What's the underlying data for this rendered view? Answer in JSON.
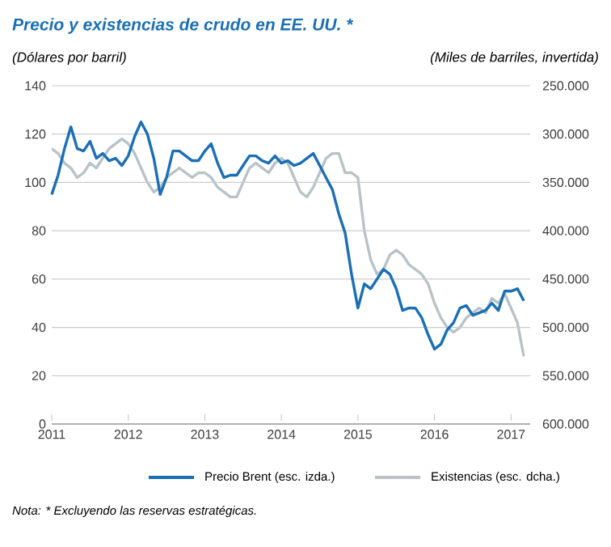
{
  "chart_data": {
    "type": "line",
    "title": "Precio y existencias de crudo en EE. UU. *",
    "ylabel": "(Dólares por barril)",
    "y2label": "(Miles de barriles, invertida)",
    "x": [
      "2011-01",
      "2011-02",
      "2011-03",
      "2011-04",
      "2011-05",
      "2011-06",
      "2011-07",
      "2011-08",
      "2011-09",
      "2011-10",
      "2011-11",
      "2011-12",
      "2012-01",
      "2012-02",
      "2012-03",
      "2012-04",
      "2012-05",
      "2012-06",
      "2012-07",
      "2012-08",
      "2012-09",
      "2012-10",
      "2012-11",
      "2012-12",
      "2013-01",
      "2013-02",
      "2013-03",
      "2013-04",
      "2013-05",
      "2013-06",
      "2013-07",
      "2013-08",
      "2013-09",
      "2013-10",
      "2013-11",
      "2013-12",
      "2014-01",
      "2014-02",
      "2014-03",
      "2014-04",
      "2014-05",
      "2014-06",
      "2014-07",
      "2014-08",
      "2014-09",
      "2014-10",
      "2014-11",
      "2014-12",
      "2015-01",
      "2015-02",
      "2015-03",
      "2015-04",
      "2015-05",
      "2015-06",
      "2015-07",
      "2015-08",
      "2015-09",
      "2015-10",
      "2015-11",
      "2015-12",
      "2016-01",
      "2016-02",
      "2016-03",
      "2016-04",
      "2016-05",
      "2016-06",
      "2016-07",
      "2016-08",
      "2016-09",
      "2016-10",
      "2016-11",
      "2016-12",
      "2017-01",
      "2017-02",
      "2017-03"
    ],
    "series": [
      {
        "name": "Precio Brent (esc. izda.)",
        "color": "#1a6fb5",
        "values": [
          95,
          103,
          114,
          123,
          114,
          113,
          117,
          110,
          112,
          109,
          110,
          107,
          111,
          119,
          125,
          120,
          110,
          95,
          102,
          113,
          113,
          111,
          109,
          109,
          113,
          116,
          108,
          102,
          103,
          103,
          107,
          111,
          111,
          109,
          108,
          111,
          108,
          109,
          107,
          108,
          110,
          112,
          107,
          102,
          97,
          87,
          79,
          62,
          48,
          58,
          56,
          60,
          64,
          62,
          56,
          47,
          48,
          48,
          44,
          37,
          31,
          33,
          39,
          42,
          48,
          49,
          45,
          46,
          47,
          50,
          47,
          55,
          55,
          56,
          51
        ]
      },
      {
        "name": "Existencias (esc. dcha.)",
        "color": "#b8c3c8",
        "axis": "y2",
        "values": [
          315000,
          320000,
          330000,
          335000,
          345000,
          340000,
          330000,
          335000,
          325000,
          315000,
          310000,
          305000,
          310000,
          320000,
          335000,
          350000,
          360000,
          355000,
          345000,
          340000,
          335000,
          340000,
          345000,
          340000,
          340000,
          345000,
          355000,
          360000,
          365000,
          365000,
          350000,
          335000,
          330000,
          335000,
          340000,
          330000,
          325000,
          330000,
          345000,
          360000,
          365000,
          355000,
          340000,
          325000,
          320000,
          320000,
          340000,
          340000,
          345000,
          400000,
          430000,
          445000,
          440000,
          425000,
          420000,
          425000,
          435000,
          440000,
          445000,
          455000,
          475000,
          490000,
          500000,
          505000,
          500000,
          490000,
          485000,
          480000,
          485000,
          470000,
          475000,
          465000,
          480000,
          495000,
          530000
        ]
      }
    ],
    "xlim": [
      "2011-01",
      "2017-04"
    ],
    "xticks": [
      "2011",
      "2012",
      "2013",
      "2014",
      "2015",
      "2016",
      "2017"
    ],
    "ylim": [
      0,
      140
    ],
    "yticks": [
      0,
      20,
      40,
      60,
      80,
      100,
      120,
      140
    ],
    "y2lim": [
      600000,
      250000
    ],
    "y2ticks": [
      {
        "value": 250000,
        "label": "250.000"
      },
      {
        "value": 300000,
        "label": "300.000"
      },
      {
        "value": 350000,
        "label": "350.000"
      },
      {
        "value": 400000,
        "label": "400.000"
      },
      {
        "value": 450000,
        "label": "450.000"
      },
      {
        "value": 500000,
        "label": "500.000"
      },
      {
        "value": 550000,
        "label": "550.000"
      },
      {
        "value": 600000,
        "label": "600.000"
      }
    ],
    "grid": "y",
    "legend": "bottom",
    "annotations": [
      "Nota: * Excluyendo las reservas estratégicas."
    ]
  }
}
